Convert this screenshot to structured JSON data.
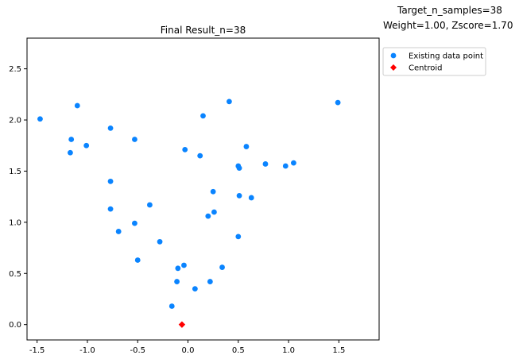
{
  "header": {
    "line1": "Target_n_samples=38",
    "line2": "Weight=1.00, Zscore=1.70"
  },
  "chart_data": {
    "type": "scatter",
    "title": "Final Result_n=38",
    "xlabel": "",
    "ylabel": "",
    "xlim": [
      -1.6,
      1.9
    ],
    "ylim": [
      -0.15,
      2.8
    ],
    "xticks": [
      -1.5,
      -1.0,
      -0.5,
      0.0,
      0.5,
      1.0,
      1.5
    ],
    "xtick_labels": [
      "-1.5",
      "-1.0",
      "-0.5",
      "0.0",
      "0.5",
      "1.0",
      "1.5"
    ],
    "yticks": [
      0.0,
      0.5,
      1.0,
      1.5,
      2.0,
      2.5
    ],
    "ytick_labels": [
      "0.0",
      "0.5",
      "1.0",
      "1.5",
      "2.0",
      "2.5"
    ],
    "grid": false,
    "legend_position": "outside-top-right",
    "series": [
      {
        "name": "Existing data point",
        "color": "#0a84ff",
        "marker": "circle",
        "points": [
          [
            -1.47,
            2.01
          ],
          [
            -1.1,
            2.14
          ],
          [
            -1.16,
            1.81
          ],
          [
            -1.17,
            1.68
          ],
          [
            -1.01,
            1.75
          ],
          [
            -0.77,
            1.92
          ],
          [
            -0.53,
            1.81
          ],
          [
            -0.77,
            1.4
          ],
          [
            -0.77,
            1.13
          ],
          [
            -0.38,
            1.17
          ],
          [
            -0.53,
            0.99
          ],
          [
            -0.69,
            0.91
          ],
          [
            -0.5,
            0.63
          ],
          [
            -0.28,
            0.81
          ],
          [
            -0.1,
            0.55
          ],
          [
            -0.04,
            0.58
          ],
          [
            -0.11,
            0.42
          ],
          [
            -0.16,
            0.18
          ],
          [
            0.07,
            0.35
          ],
          [
            0.22,
            0.42
          ],
          [
            0.34,
            0.56
          ],
          [
            0.5,
            0.86
          ],
          [
            0.2,
            1.06
          ],
          [
            0.26,
            1.1
          ],
          [
            0.25,
            1.3
          ],
          [
            0.51,
            1.26
          ],
          [
            0.63,
            1.24
          ],
          [
            -0.03,
            1.71
          ],
          [
            0.12,
            1.65
          ],
          [
            0.15,
            2.04
          ],
          [
            0.41,
            2.18
          ],
          [
            0.5,
            1.55
          ],
          [
            0.51,
            1.53
          ],
          [
            0.58,
            1.74
          ],
          [
            0.77,
            1.57
          ],
          [
            0.97,
            1.55
          ],
          [
            1.05,
            1.58
          ],
          [
            1.49,
            2.17
          ]
        ]
      },
      {
        "name": "Centroid",
        "color": "#ff0000",
        "marker": "diamond",
        "points": [
          [
            -0.06,
            0.0
          ]
        ]
      }
    ]
  }
}
